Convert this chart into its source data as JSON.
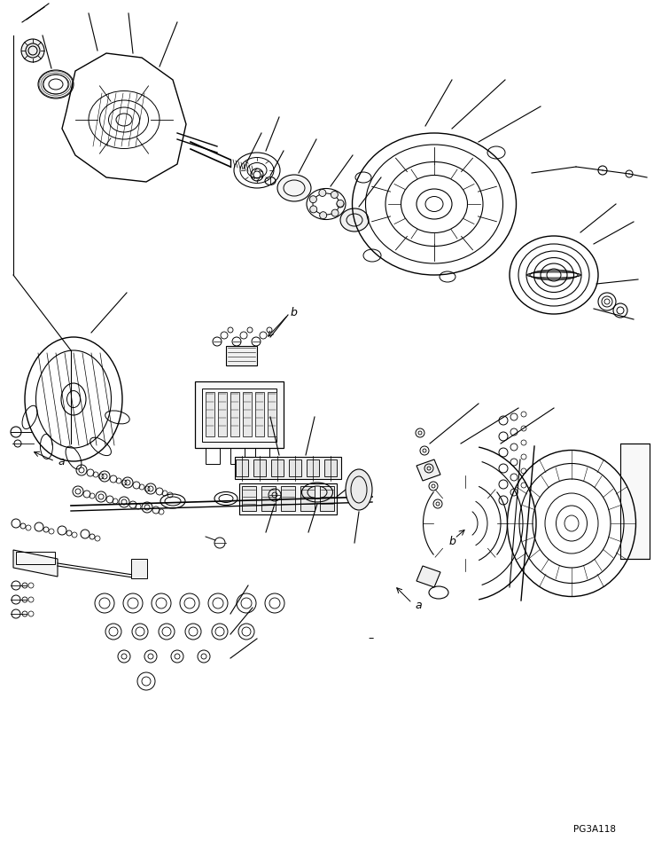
{
  "page_id": "PG3A118",
  "background_color": "#ffffff",
  "line_color": "#000000",
  "label_a": "a",
  "label_b": "b",
  "dash_note": "-",
  "figsize": [
    7.38,
    9.56
  ],
  "dpi": 100
}
